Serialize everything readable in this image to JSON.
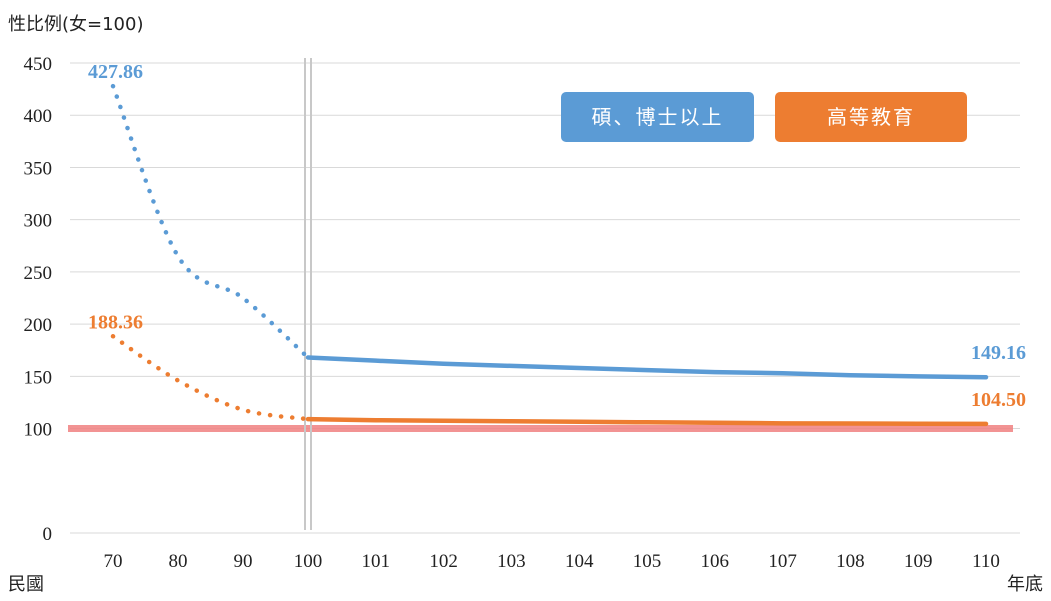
{
  "chart_data": {
    "type": "line",
    "ylabel": "性比例(女=100)",
    "xlabel_left": "民國",
    "xlabel_right": "年底",
    "categories": [
      "70",
      "80",
      "90",
      "100",
      "101",
      "102",
      "103",
      "104",
      "105",
      "106",
      "107",
      "108",
      "109",
      "110"
    ],
    "yticks": [
      "0",
      "100",
      "150",
      "200",
      "250",
      "300",
      "350",
      "400",
      "450"
    ],
    "ylim": [
      0,
      450
    ],
    "reference_line": {
      "value": 100,
      "color": "#f08080"
    },
    "legend_position": "top-right",
    "series": [
      {
        "name": "碩、博士以上",
        "color": "#5b9bd5",
        "values": [
          427.86,
          265,
          225,
          168,
          165,
          162,
          160,
          158,
          156,
          154,
          153,
          151,
          150,
          149.16
        ],
        "dotted_until_index": 3,
        "labels": [
          {
            "index": 0,
            "text": "427.86"
          },
          {
            "index": 13,
            "text": "149.16"
          }
        ]
      },
      {
        "name": "高等教育",
        "color": "#ed7d31",
        "values": [
          188.36,
          146,
          118,
          109,
          108,
          107.5,
          107,
          106.5,
          106,
          105.5,
          105,
          104.8,
          104.6,
          104.5
        ],
        "dotted_until_index": 3,
        "labels": [
          {
            "index": 0,
            "text": "188.36"
          },
          {
            "index": 13,
            "text": "104.50"
          }
        ]
      }
    ]
  }
}
